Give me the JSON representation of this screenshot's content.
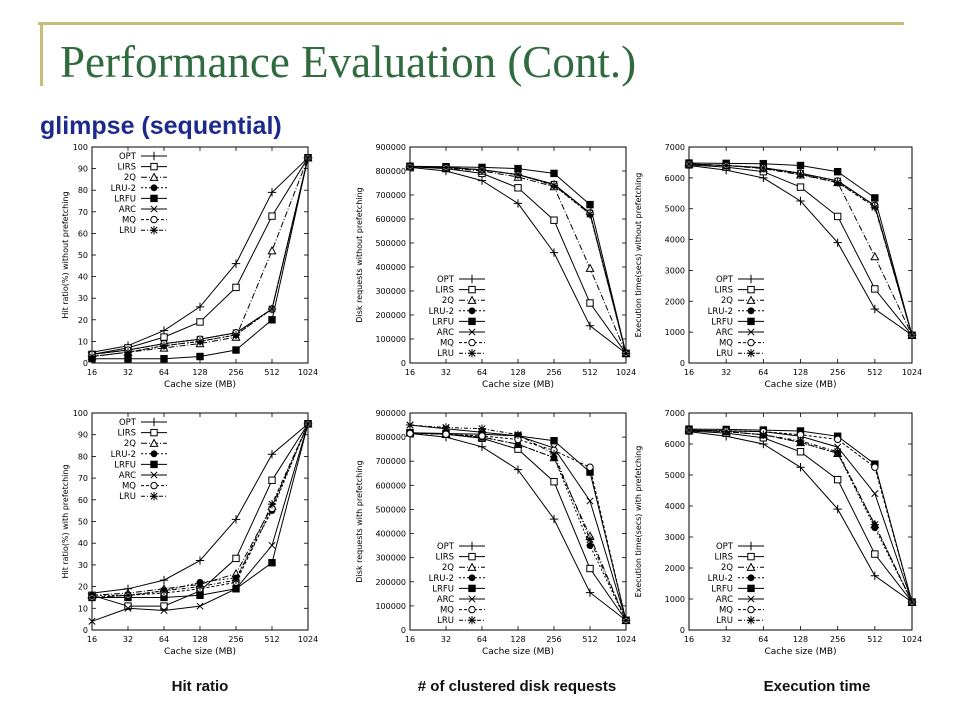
{
  "slide": {
    "title": "Performance Evaluation (Cont.)",
    "subtitle": "glimpse (sequential)",
    "column_labels": [
      "Hit ratio",
      "# of clustered disk requests",
      "Execution time"
    ]
  },
  "chart_data": [
    {
      "type": "line",
      "xlabel": "Cache size (MB)",
      "ylabel": "Hit ratio(%) without prefetching",
      "x": [
        "16",
        "32",
        "64",
        "128",
        "256",
        "512",
        "1024"
      ],
      "ylim": [
        0,
        100
      ],
      "yticks": [
        0,
        10,
        20,
        30,
        40,
        50,
        60,
        70,
        80,
        90,
        100
      ],
      "legend": "top-left",
      "series": [
        {
          "name": "OPT",
          "values": [
            5,
            8,
            15,
            26,
            46,
            79,
            95
          ]
        },
        {
          "name": "LIRS",
          "values": [
            4,
            7,
            12,
            19,
            35,
            68,
            95
          ]
        },
        {
          "name": "2Q",
          "values": [
            3,
            5,
            7,
            9,
            12,
            52,
            95
          ]
        },
        {
          "name": "LRU-2",
          "values": [
            3,
            5,
            8,
            10,
            13,
            25,
            95
          ]
        },
        {
          "name": "LRFU",
          "values": [
            2,
            2,
            2,
            3,
            6,
            20,
            95
          ]
        },
        {
          "name": "ARC",
          "values": [
            4,
            6,
            9,
            11,
            14,
            25,
            95
          ]
        },
        {
          "name": "MQ",
          "values": [
            4,
            6,
            9,
            11,
            14,
            25,
            95
          ]
        },
        {
          "name": "LRU",
          "values": [
            3,
            5,
            8,
            10,
            13,
            25,
            95
          ]
        }
      ]
    },
    {
      "type": "line",
      "xlabel": "Cache size (MB)",
      "ylabel": "Disk requests without prefetching",
      "x": [
        "16",
        "32",
        "64",
        "128",
        "256",
        "512",
        "1024"
      ],
      "ylim": [
        0,
        900000
      ],
      "yticks": [
        0,
        100000,
        200000,
        300000,
        400000,
        500000,
        600000,
        700000,
        800000,
        900000
      ],
      "legend": "bottom-left",
      "series": [
        {
          "name": "OPT",
          "values": [
            815000,
            800000,
            760000,
            665000,
            460000,
            155000,
            40000
          ]
        },
        {
          "name": "LIRS",
          "values": [
            818000,
            810000,
            790000,
            730000,
            595000,
            250000,
            40000
          ]
        },
        {
          "name": "2Q",
          "values": [
            818000,
            812000,
            800000,
            775000,
            735000,
            395000,
            40000
          ]
        },
        {
          "name": "LRU-2",
          "values": [
            818000,
            815000,
            805000,
            785000,
            740000,
            620000,
            40000
          ]
        },
        {
          "name": "LRFU",
          "values": [
            820000,
            818000,
            815000,
            810000,
            790000,
            660000,
            40000
          ]
        },
        {
          "name": "ARC",
          "values": [
            818000,
            815000,
            805000,
            785000,
            745000,
            625000,
            40000
          ]
        },
        {
          "name": "MQ",
          "values": [
            818000,
            815000,
            805000,
            785000,
            745000,
            625000,
            40000
          ]
        },
        {
          "name": "LRU",
          "values": [
            818000,
            815000,
            805000,
            785000,
            740000,
            620000,
            40000
          ]
        }
      ]
    },
    {
      "type": "line",
      "xlabel": "Cache size (MB)",
      "ylabel": "Execution time(secs) without prefetching",
      "x": [
        "16",
        "32",
        "64",
        "128",
        "256",
        "512",
        "1024"
      ],
      "ylim": [
        0,
        7000
      ],
      "yticks": [
        0,
        1000,
        2000,
        3000,
        4000,
        5000,
        6000,
        7000
      ],
      "legend": "bottom-left",
      "series": [
        {
          "name": "OPT",
          "values": [
            6400,
            6250,
            6000,
            5250,
            3900,
            1750,
            900
          ]
        },
        {
          "name": "LIRS",
          "values": [
            6420,
            6350,
            6200,
            5700,
            4750,
            2400,
            900
          ]
        },
        {
          "name": "2Q",
          "values": [
            6450,
            6400,
            6300,
            6100,
            5850,
            3450,
            900
          ]
        },
        {
          "name": "LRU-2",
          "values": [
            6450,
            6400,
            6320,
            6120,
            5850,
            5100,
            900
          ]
        },
        {
          "name": "LRFU",
          "values": [
            6480,
            6470,
            6460,
            6400,
            6200,
            5350,
            900
          ]
        },
        {
          "name": "ARC",
          "values": [
            6450,
            6400,
            6330,
            6150,
            5900,
            5100,
            900
          ]
        },
        {
          "name": "MQ",
          "values": [
            6450,
            6400,
            6330,
            6150,
            5900,
            5100,
            900
          ]
        },
        {
          "name": "LRU",
          "values": [
            6450,
            6400,
            6320,
            6120,
            5850,
            5050,
            900
          ]
        }
      ]
    },
    {
      "type": "line",
      "xlabel": "Cache size (MB)",
      "ylabel": "Hit ratio(%) with prefetching",
      "x": [
        "16",
        "32",
        "64",
        "128",
        "256",
        "512",
        "1024"
      ],
      "ylim": [
        0,
        100
      ],
      "yticks": [
        0,
        10,
        20,
        30,
        40,
        50,
        60,
        70,
        80,
        90,
        100
      ],
      "legend": "top-left",
      "series": [
        {
          "name": "OPT",
          "values": [
            17,
            19,
            23,
            32,
            51,
            81,
            95
          ]
        },
        {
          "name": "LIRS",
          "values": [
            16,
            11,
            11,
            18,
            33,
            69,
            95
          ]
        },
        {
          "name": "2Q",
          "values": [
            16,
            17,
            19,
            21,
            26,
            57,
            95
          ]
        },
        {
          "name": "LRU-2",
          "values": [
            16,
            16,
            18,
            22,
            24,
            55,
            95
          ]
        },
        {
          "name": "LRFU",
          "values": [
            15,
            15,
            15,
            16,
            19,
            31,
            95
          ]
        },
        {
          "name": "ARC",
          "values": [
            4,
            10,
            9,
            11,
            19,
            39,
            95
          ]
        },
        {
          "name": "MQ",
          "values": [
            15,
            16,
            17,
            19,
            22,
            56,
            95
          ]
        },
        {
          "name": "LRU",
          "values": [
            15,
            16,
            18,
            20,
            23,
            58,
            95
          ]
        }
      ]
    },
    {
      "type": "line",
      "xlabel": "Cache size (MB)",
      "ylabel": "Disk requests with prefetching",
      "x": [
        "16",
        "32",
        "64",
        "128",
        "256",
        "512",
        "1024"
      ],
      "ylim": [
        0,
        900000
      ],
      "yticks": [
        0,
        100000,
        200000,
        300000,
        400000,
        500000,
        600000,
        700000,
        800000,
        900000
      ],
      "legend": "bottom-left",
      "series": [
        {
          "name": "OPT",
          "values": [
            815000,
            800000,
            760000,
            665000,
            460000,
            155000,
            40000
          ]
        },
        {
          "name": "LIRS",
          "values": [
            818000,
            812000,
            795000,
            750000,
            615000,
            255000,
            40000
          ]
        },
        {
          "name": "2Q",
          "values": [
            818000,
            812000,
            800000,
            770000,
            715000,
            390000,
            40000
          ]
        },
        {
          "name": "LRU-2",
          "values": [
            818000,
            812000,
            800000,
            770000,
            715000,
            350000,
            40000
          ]
        },
        {
          "name": "LRFU",
          "values": [
            818000,
            815000,
            812000,
            805000,
            785000,
            655000,
            40000
          ]
        },
        {
          "name": "ARC",
          "values": [
            850000,
            835000,
            820000,
            805000,
            755000,
            535000,
            40000
          ]
        },
        {
          "name": "MQ",
          "values": [
            815000,
            812000,
            805000,
            790000,
            745000,
            675000,
            40000
          ]
        },
        {
          "name": "LRU",
          "values": [
            850000,
            840000,
            835000,
            810000,
            730000,
            375000,
            40000
          ]
        }
      ]
    },
    {
      "type": "line",
      "xlabel": "Cache size (MB)",
      "ylabel": "Execution time(secs) with prefetching",
      "x": [
        "16",
        "32",
        "64",
        "128",
        "256",
        "512",
        "1024"
      ],
      "ylim": [
        0,
        7000
      ],
      "yticks": [
        0,
        1000,
        2000,
        3000,
        4000,
        5000,
        6000,
        7000
      ],
      "legend": "bottom-left",
      "series": [
        {
          "name": "OPT",
          "values": [
            6400,
            6250,
            6000,
            5250,
            3900,
            1750,
            900
          ]
        },
        {
          "name": "LIRS",
          "values": [
            6420,
            6350,
            6200,
            5750,
            4850,
            2450,
            900
          ]
        },
        {
          "name": "2Q",
          "values": [
            6450,
            6400,
            6300,
            6050,
            5700,
            3400,
            900
          ]
        },
        {
          "name": "LRU-2",
          "values": [
            6450,
            6400,
            6300,
            6050,
            5700,
            3300,
            900
          ]
        },
        {
          "name": "LRFU",
          "values": [
            6480,
            6470,
            6450,
            6420,
            6250,
            5350,
            900
          ]
        },
        {
          "name": "ARC",
          "values": [
            6450,
            6420,
            6400,
            6250,
            5900,
            4400,
            900
          ]
        },
        {
          "name": "MQ",
          "values": [
            6450,
            6430,
            6400,
            6300,
            6150,
            5250,
            900
          ]
        },
        {
          "name": "LRU",
          "values": [
            6450,
            6400,
            6300,
            6100,
            5750,
            3400,
            900
          ]
        }
      ]
    }
  ]
}
